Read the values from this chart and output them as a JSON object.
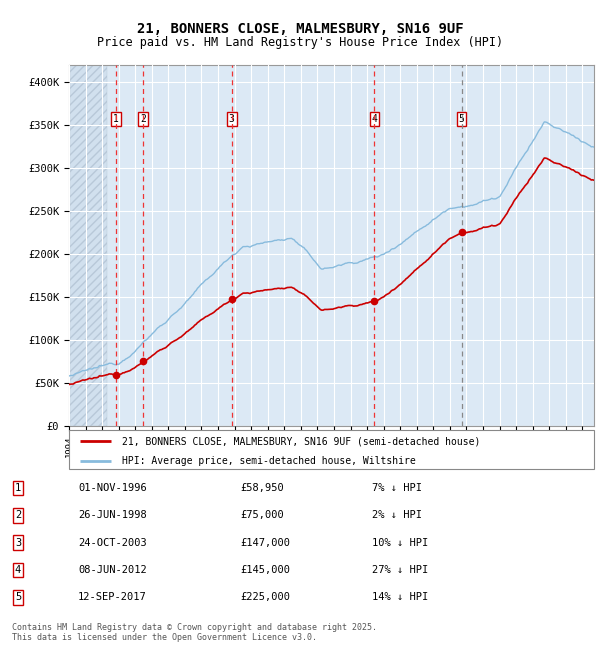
{
  "title": "21, BONNERS CLOSE, MALMESBURY, SN16 9UF",
  "subtitle": "Price paid vs. HM Land Registry's House Price Index (HPI)",
  "legend_label_red": "21, BONNERS CLOSE, MALMESBURY, SN16 9UF (semi-detached house)",
  "legend_label_blue": "HPI: Average price, semi-detached house, Wiltshire",
  "footer": "Contains HM Land Registry data © Crown copyright and database right 2025.\nThis data is licensed under the Open Government Licence v3.0.",
  "transactions": [
    {
      "num": 1,
      "date": "01-NOV-1996",
      "price": 58950,
      "pct": "7% ↓ HPI",
      "x_year": 1996.84
    },
    {
      "num": 2,
      "date": "26-JUN-1998",
      "price": 75000,
      "pct": "2% ↓ HPI",
      "x_year": 1998.49
    },
    {
      "num": 3,
      "date": "24-OCT-2003",
      "price": 147000,
      "pct": "10% ↓ HPI",
      "x_year": 2003.82
    },
    {
      "num": 4,
      "date": "08-JUN-2012",
      "price": 145000,
      "pct": "27% ↓ HPI",
      "x_year": 2012.44
    },
    {
      "num": 5,
      "date": "12-SEP-2017",
      "price": 225000,
      "pct": "14% ↓ HPI",
      "x_year": 2017.7
    }
  ],
  "ylim": [
    0,
    420000
  ],
  "xlim": [
    1994.0,
    2025.7
  ],
  "plot_bg": "#dce9f5",
  "grid_color": "#ffffff",
  "red_color": "#cc0000",
  "blue_color": "#88bbdd",
  "vline_red": "#ee3333",
  "vline_grey": "#888888",
  "hatch_color": "#b8c8d8"
}
